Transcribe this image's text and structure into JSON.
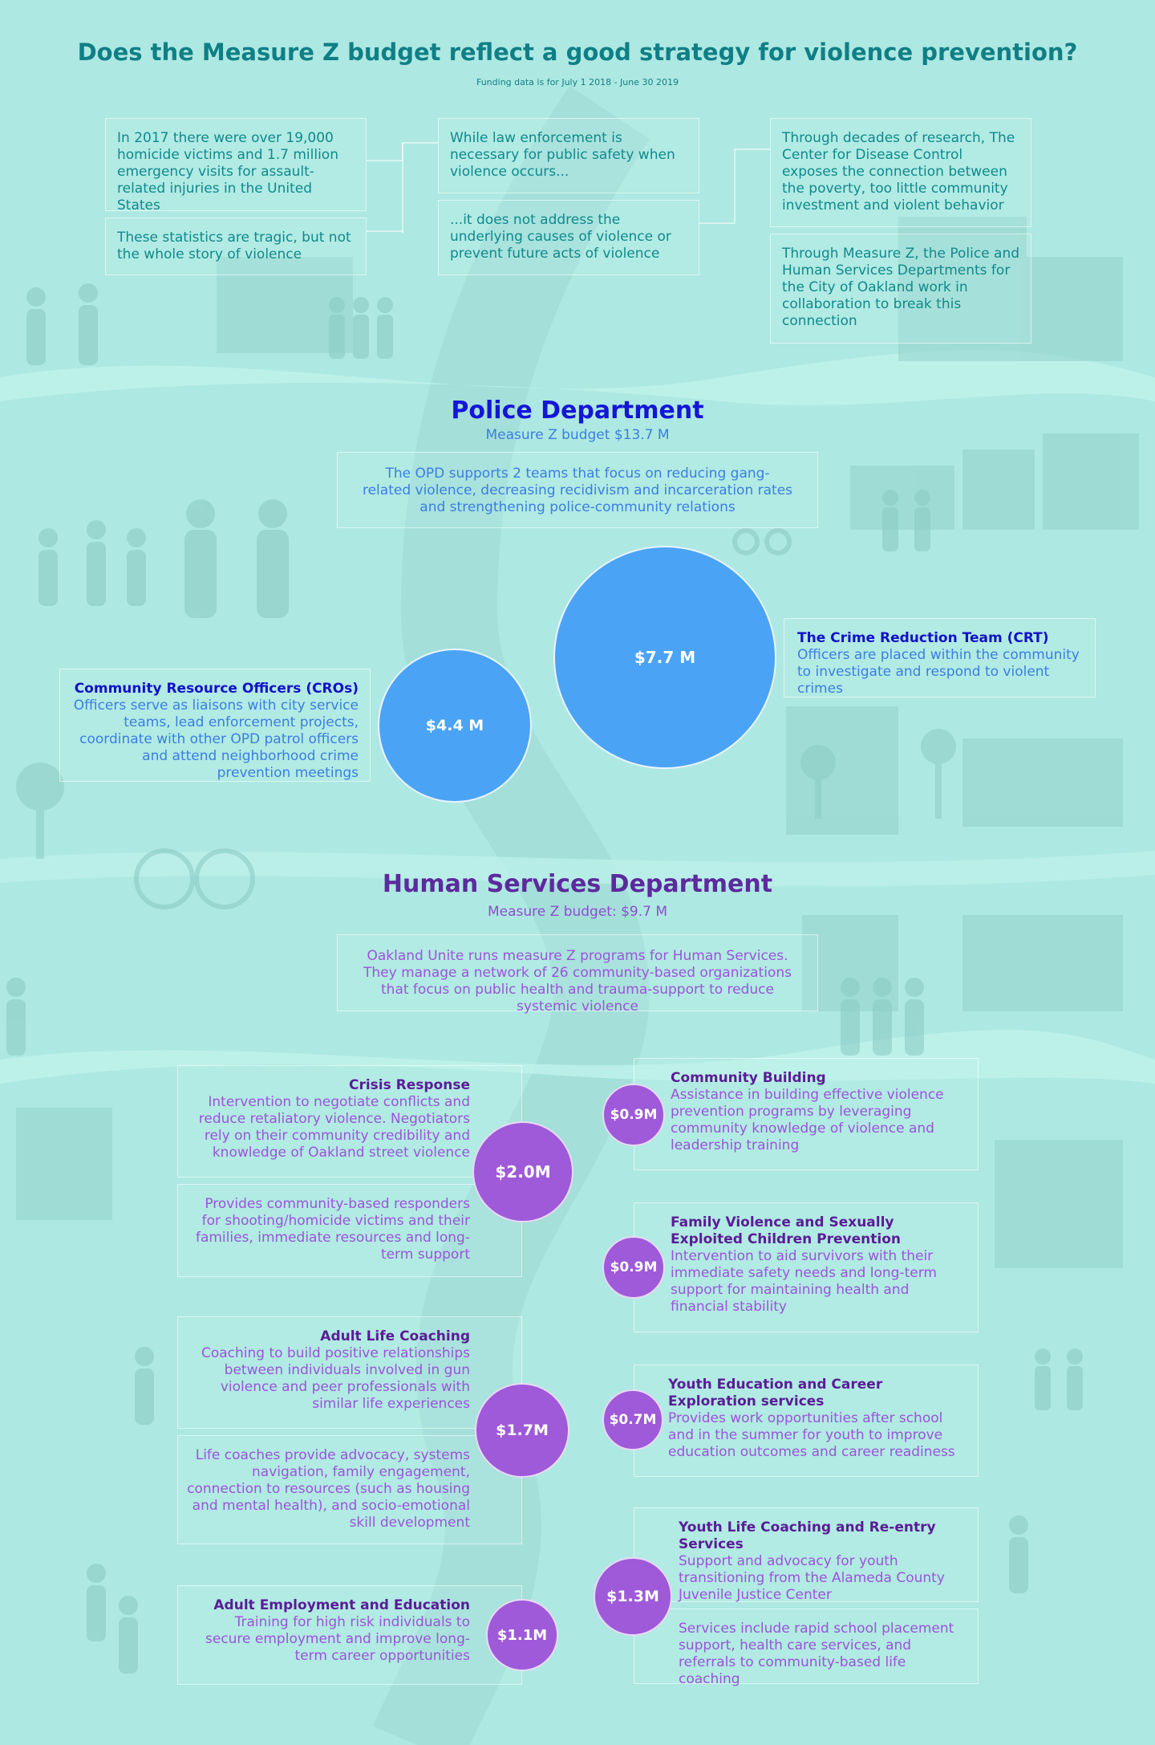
{
  "header": {
    "title": "Does the Measure Z budget reflect a good strategy for violence prevention?",
    "subtitle": "Funding data is for July 1 2018 - June 30 2019"
  },
  "intro": {
    "box1": "In 2017 there were over 19,000 homicide victims and 1.7 million emergency visits for assault-related injuries in the United States",
    "box2": "These statistics are tragic, but not the whole story of violence",
    "box3": "While law enforcement is necessary for public safety when violence occurs...",
    "box4": "...it does not address the underlying causes of violence or prevent future acts of violence",
    "box5": "Through decades of research, The Center for Disease Control exposes the connection between the poverty, too little community investment and violent behavior",
    "box6": "Through Measure Z, the Police and Human Services Departments for the City of Oakland work in collaboration to break this connection"
  },
  "police": {
    "heading": "Police Department",
    "budget": "Measure Z budget $13.7 M",
    "description": "The OPD supports 2 teams that focus on reducing gang-related violence, decreasing recidivism and incarceration rates and strengthening police-community relations",
    "crt": {
      "amount": "$7.7 M",
      "title": "The Crime Reduction Team (CRT)",
      "text": "Officers are placed within the community to investigate and respond to violent crimes"
    },
    "cro": {
      "amount": "$4.4 M",
      "title": "Community Resource Officers (CROs)",
      "text": "Officers serve as liaisons with city service teams, lead enforcement projects, coordinate with other OPD patrol officers and attend neighborhood crime prevention meetings"
    }
  },
  "hs": {
    "heading": "Human Services Department",
    "budget": "Measure Z budget: $9.7 M",
    "description": "Oakland Unite runs measure Z programs for Human Services. They manage a network of 26 community-based organizations that focus on public health and trauma-support to reduce systemic violence",
    "crisis": {
      "amount": "$2.0M",
      "title": "Crisis Response",
      "text1": "Intervention to negotiate conflicts and reduce retaliatory violence. Negotiators rely on their community credibility and knowledge of Oakland street violence",
      "text2": "Provides community-based responders for shooting/homicide victims and their families, immediate resources and long-term support"
    },
    "adult_coaching": {
      "amount": "$1.7M",
      "title": "Adult Life Coaching",
      "text1": "Coaching to build positive relationships between individuals involved in gun violence and peer professionals with similar life experiences",
      "text2": "Life coaches provide advocacy, systems navigation, family engagement, connection to resources (such as housing and mental health), and socio-emotional skill development"
    },
    "adult_employment": {
      "amount": "$1.1M",
      "title": "Adult Employment and Education",
      "text": "Training for high risk individuals to secure employment and improve long-term career opportunities"
    },
    "community_building": {
      "amount": "$0.9M",
      "title": "Community Building",
      "text": "Assistance in building effective violence prevention programs by leveraging community knowledge of violence and leadership training"
    },
    "family_violence": {
      "amount": "$0.9M",
      "title": "Family Violence and Sexually Exploited Children Prevention",
      "text": "Intervention to aid survivors with their immediate safety needs and long-term support for maintaining health and financial stability"
    },
    "youth_education": {
      "amount": "$0.7M",
      "title": "Youth Education and Career Exploration services",
      "text": "Provides work opportunities after school and in the summer for youth to improve education outcomes and career readiness"
    },
    "youth_coaching": {
      "amount": "$1.3M",
      "title": "Youth Life Coaching and Re-entry Services",
      "text1": "Support and advocacy for youth transitioning from the Alameda County Juvenile Justice Center",
      "text2": "Services include rapid school placement support, health care services, and referrals to community-based life coaching"
    }
  },
  "colors": {
    "background": "#aee8e2",
    "teal": "#0f7f86",
    "police_blue": "#4ba3f5",
    "hs_purple": "#9e5ad8"
  }
}
